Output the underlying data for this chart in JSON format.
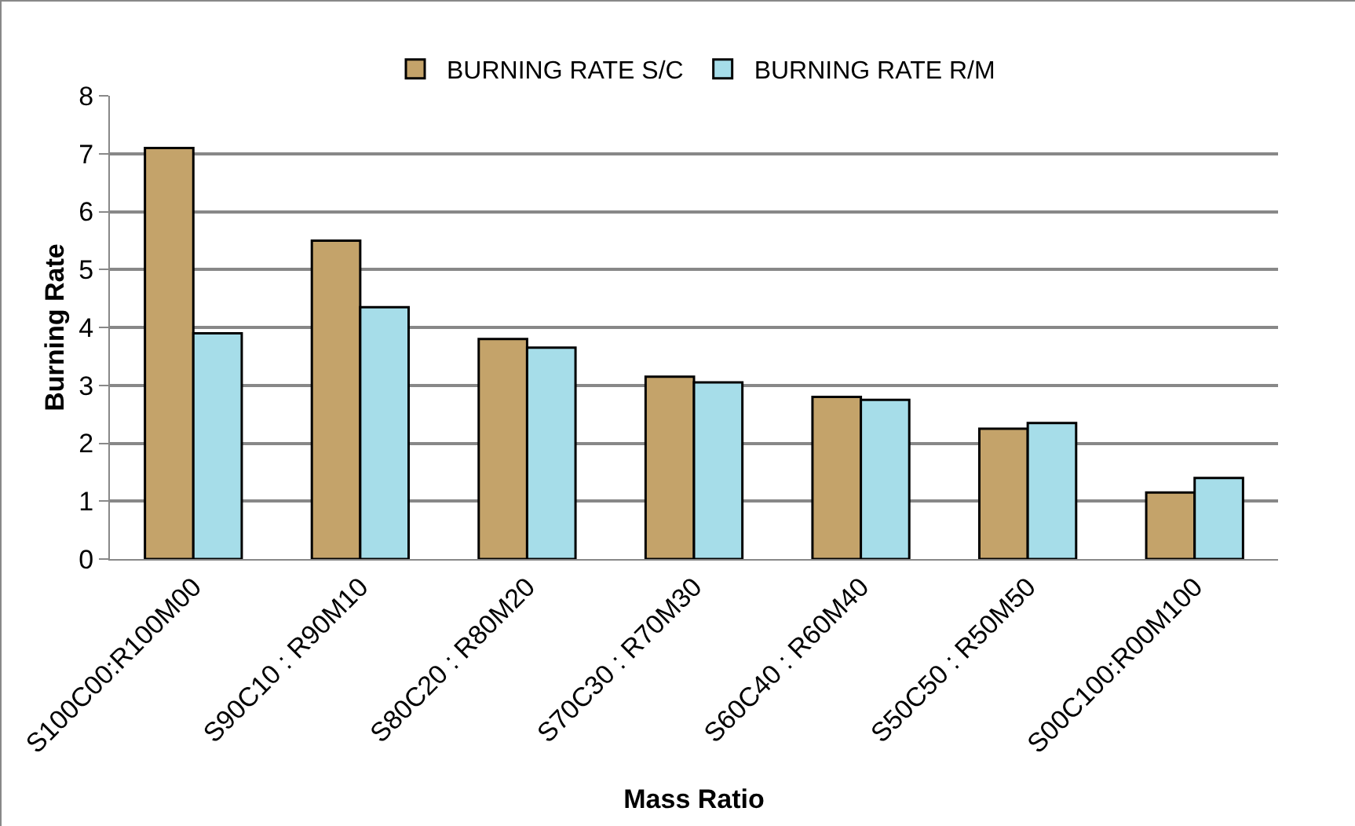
{
  "chart_data": {
    "type": "bar",
    "xlabel": "Mass Ratio",
    "ylabel": "Burning Rate",
    "categories": [
      "S100C00:R100M00",
      "S90C10 : R90M10",
      "S80C20 : R80M20",
      "S70C30 : R70M30",
      "S60C40 : R60M40",
      "S50C50 : R50M50",
      "S00C100:R00M100"
    ],
    "series": [
      {
        "name": "BURNING RATE S/C",
        "color": "#c4a36a",
        "values": [
          7.1,
          5.5,
          3.8,
          3.15,
          2.8,
          2.25,
          1.15
        ]
      },
      {
        "name": "BURNING RATE R/M",
        "color": "#a6dde9",
        "values": [
          3.9,
          4.35,
          3.65,
          3.05,
          2.75,
          2.35,
          1.4
        ]
      }
    ],
    "ylim": [
      0,
      8
    ],
    "yticks": [
      0,
      1,
      2,
      3,
      4,
      5,
      6,
      7,
      8
    ],
    "grid": "y",
    "legend": "top"
  }
}
